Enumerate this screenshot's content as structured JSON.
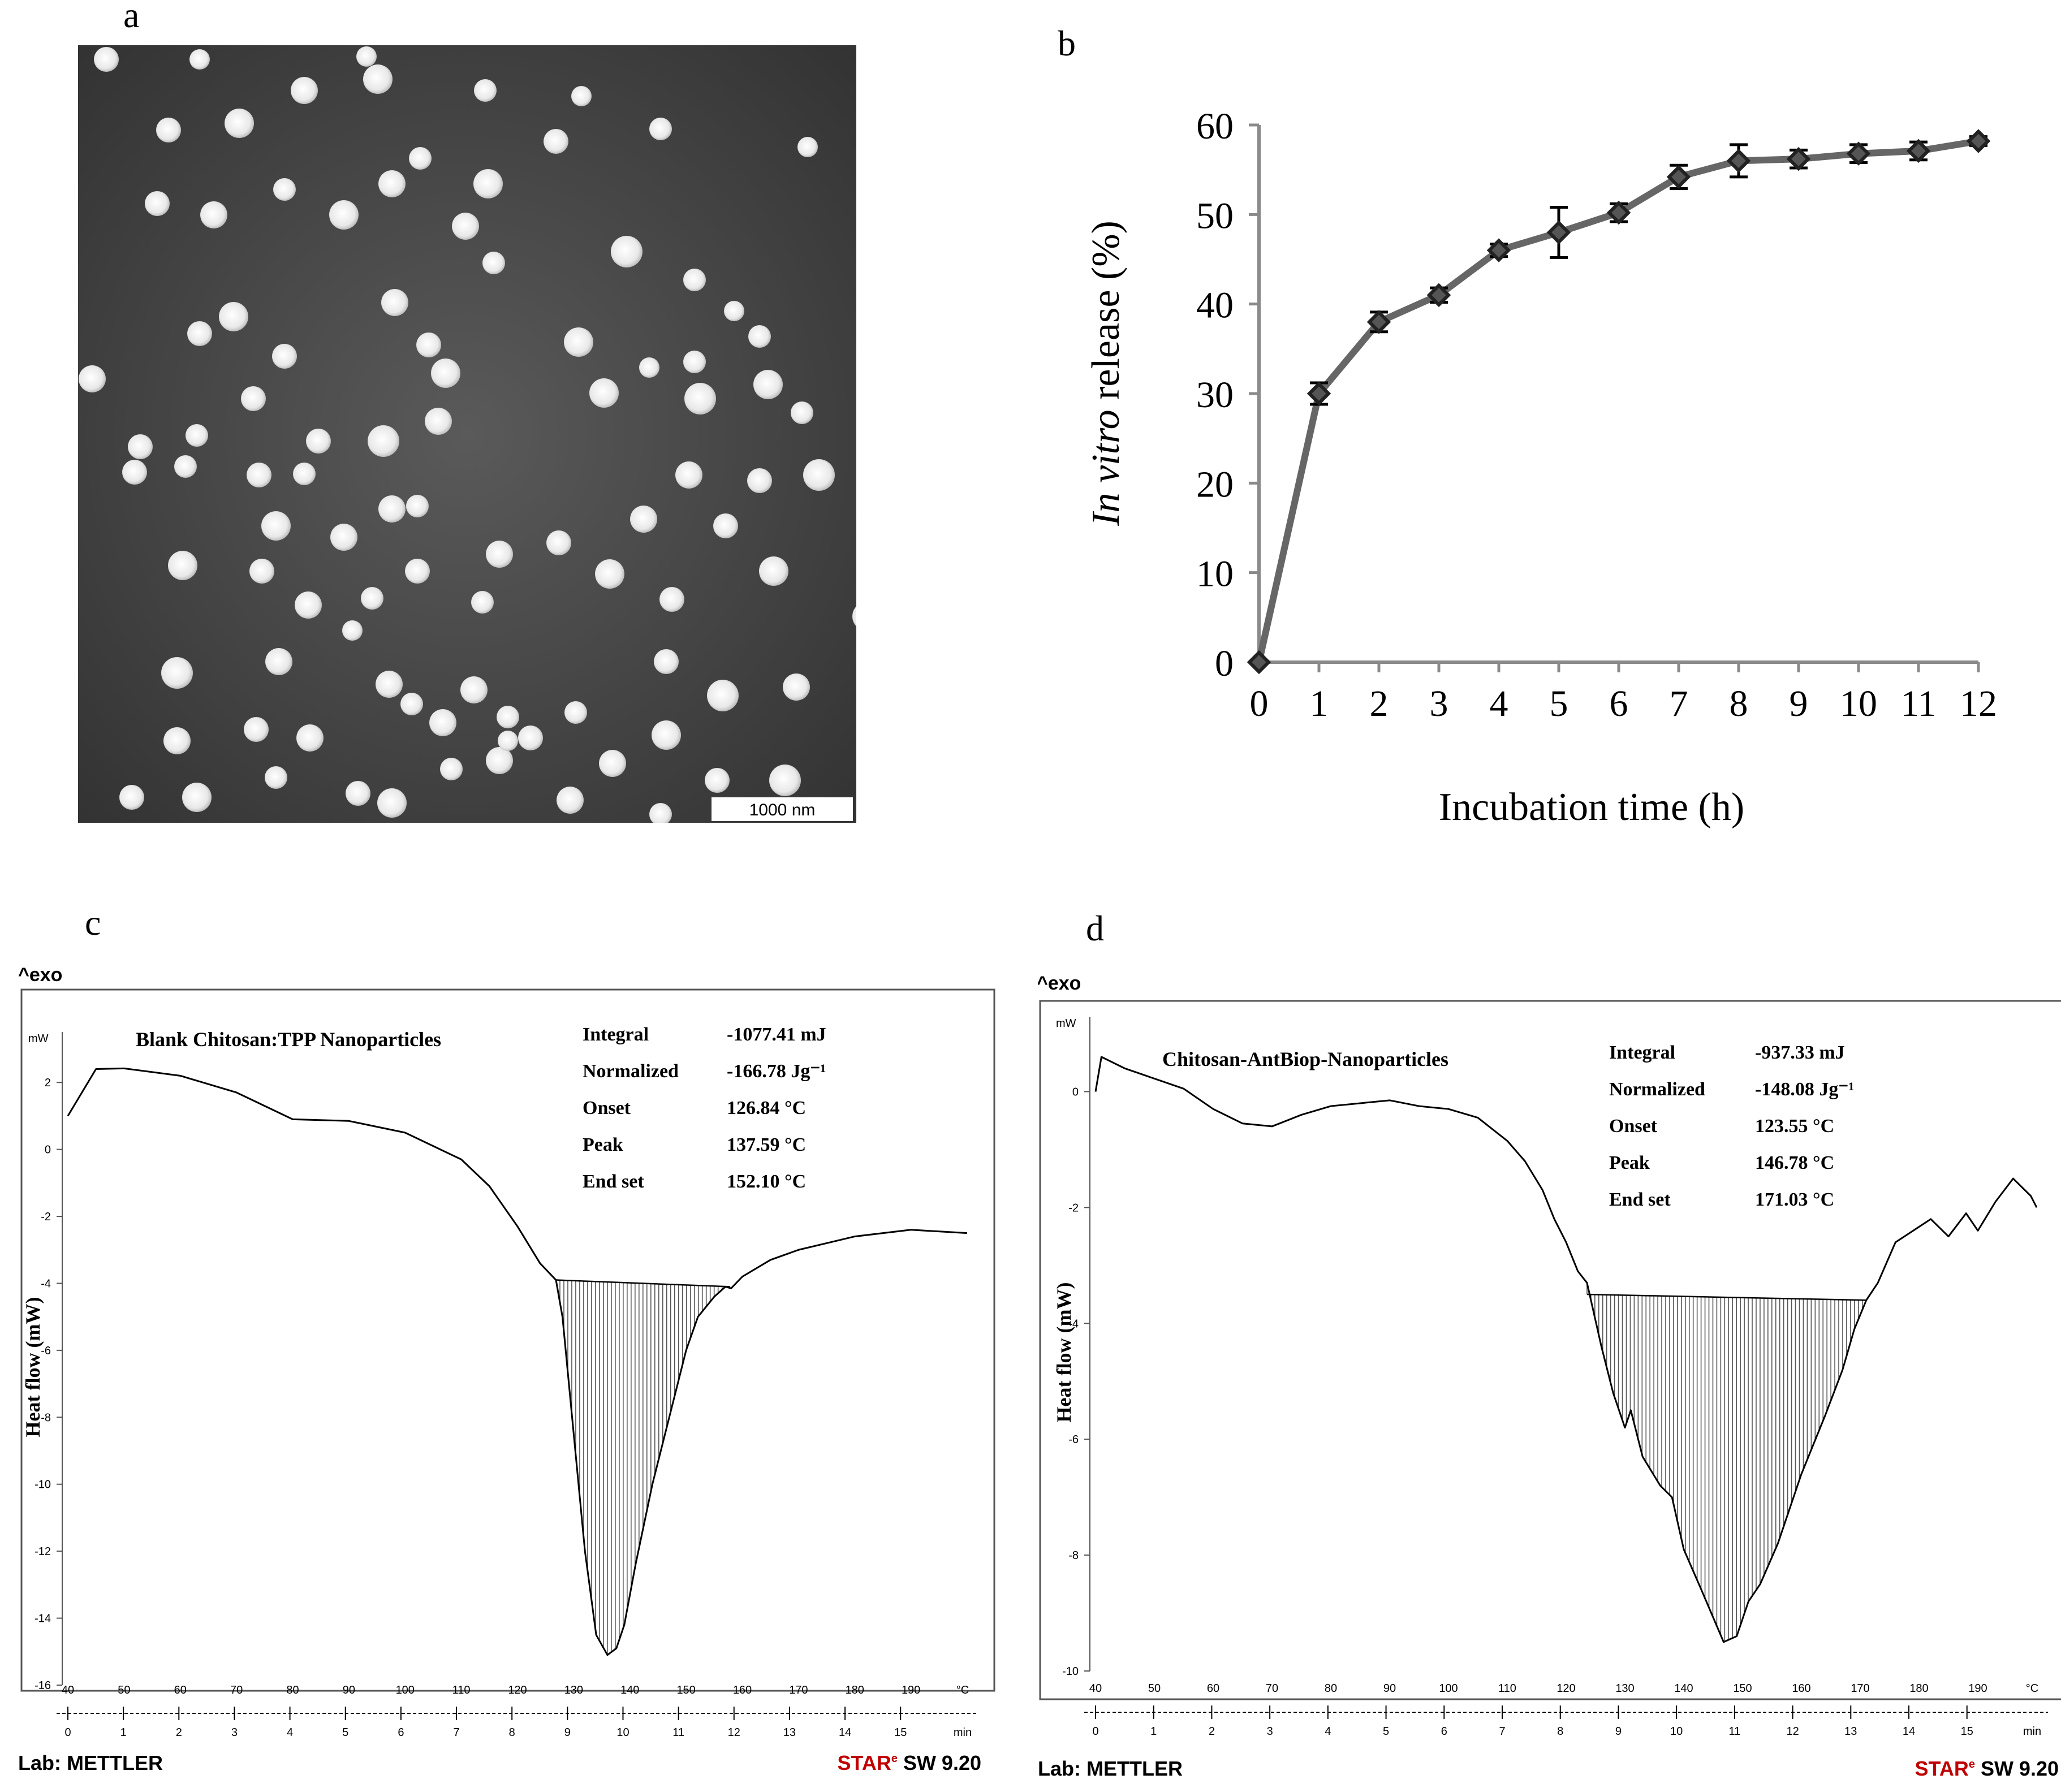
{
  "panels": {
    "a": {
      "letter": "a",
      "scale_bar": "1000 nm"
    },
    "b": {
      "letter": "b"
    },
    "c": {
      "letter": "c"
    },
    "d": {
      "letter": "d"
    }
  },
  "chart_data": [
    {
      "id": "b",
      "type": "line",
      "title": "",
      "xlabel": "Incubation time (h)",
      "ylabel_italic": "In vitro",
      "ylabel_rest": " release (%)",
      "x": [
        0,
        1,
        2,
        3,
        4,
        5,
        6,
        7,
        8,
        9,
        10,
        11,
        12
      ],
      "series": [
        {
          "name": "In vitro release",
          "values": [
            0,
            30,
            38,
            41,
            46,
            48,
            50.2,
            54.2,
            56,
            56.2,
            56.8,
            57.1,
            58.2
          ],
          "errors": [
            0,
            1.2,
            1.1,
            0.8,
            0.7,
            2.8,
            1.0,
            1.3,
            1.8,
            1.0,
            1.0,
            1.0,
            0.5
          ]
        }
      ],
      "xlim": [
        0,
        12
      ],
      "ylim": [
        0,
        60
      ],
      "yticks": [
        0,
        10,
        20,
        30,
        40,
        50,
        60
      ],
      "line_color": "#666666",
      "marker_color": "#222222"
    },
    {
      "id": "c",
      "type": "line",
      "exo_label": "^exo",
      "unit_label": "mW",
      "title": "Blank Chitosan:TPP Nanoparticles",
      "ylabel": "Heat flow (mW)",
      "ylim": [
        -16,
        3
      ],
      "yticks": [
        2,
        0,
        -2,
        -4,
        -6,
        -8,
        -10,
        -12,
        -14,
        -16
      ],
      "temp_ticks": [
        40,
        50,
        60,
        70,
        80,
        90,
        100,
        110,
        120,
        130,
        140,
        150,
        160,
        170,
        180,
        190
      ],
      "temp_unit": "°C",
      "time_ticks": [
        0,
        1,
        2,
        3,
        4,
        5,
        6,
        7,
        8,
        9,
        10,
        11,
        12,
        13,
        14,
        15
      ],
      "time_unit": "min",
      "xlim_temp": [
        40,
        200
      ],
      "curve": {
        "temp": [
          40,
          45,
          50,
          60,
          70,
          80,
          90,
          100,
          110,
          115,
          120,
          124,
          126.84,
          128,
          130,
          132,
          134,
          136,
          137.59,
          139,
          141,
          144,
          147,
          150,
          152.1,
          155,
          157,
          158,
          160,
          165,
          170,
          175,
          180,
          190,
          200
        ],
        "heat": [
          1.0,
          2.4,
          2.42,
          2.2,
          1.7,
          0.9,
          0.85,
          0.5,
          -0.3,
          -1.1,
          -2.3,
          -3.4,
          -3.9,
          -5.0,
          -8.5,
          -12.0,
          -14.5,
          -15.1,
          -14.9,
          -14.2,
          -12.4,
          -10.0,
          -8.0,
          -6.0,
          -5.0,
          -4.4,
          -4.1,
          -4.15,
          -3.8,
          -3.3,
          -3.0,
          -2.8,
          -2.6,
          -2.4,
          -2.5
        ]
      },
      "baseline": {
        "temp": [
          126.84,
          157.8
        ],
        "heat": [
          -3.9,
          -4.1
        ]
      },
      "table": [
        {
          "label": "Integral",
          "value": "-1077.41 mJ"
        },
        {
          "label": "Normalized",
          "value": "-166.78 Jg⁻¹"
        },
        {
          "label": "Onset",
          "value": "126.84 °C"
        },
        {
          "label": "Peak",
          "value": "137.59 °C"
        },
        {
          "label": "End set",
          "value": "152.10 °C"
        }
      ],
      "lab": "Lab: METTLER",
      "star_prefix": "STAR",
      "star_sup": "e",
      "star_suffix": " SW 9.20"
    },
    {
      "id": "d",
      "type": "line",
      "exo_label": "^exo",
      "unit_label": "mW",
      "title": "Chitosan-AntBiop-Nanoparticles",
      "ylabel": "Heat flow (mW)",
      "ylim": [
        -10,
        1
      ],
      "yticks": [
        0,
        -2,
        -4,
        -6,
        -8,
        -10
      ],
      "temp_ticks": [
        40,
        50,
        60,
        70,
        80,
        90,
        100,
        110,
        120,
        130,
        140,
        150,
        160,
        170,
        180,
        190
      ],
      "temp_unit": "°C",
      "time_ticks": [
        0,
        1,
        2,
        3,
        4,
        5,
        6,
        7,
        8,
        9,
        10,
        11,
        12,
        13,
        14,
        15
      ],
      "time_unit": "min",
      "xlim_temp": [
        40,
        200
      ],
      "curve": {
        "temp": [
          40,
          41,
          45,
          55,
          60,
          65,
          70,
          75,
          80,
          85,
          90,
          95,
          100,
          105,
          110,
          113,
          116,
          118,
          120,
          122,
          123.55,
          126,
          128,
          130,
          131,
          133,
          136,
          138,
          140,
          143,
          146.78,
          149,
          151,
          153,
          156,
          160,
          164,
          167,
          169,
          171.03,
          173,
          176,
          179,
          182,
          185,
          188,
          190,
          193,
          196,
          199,
          200
        ],
        "heat": [
          0.0,
          0.6,
          0.4,
          0.05,
          -0.3,
          -0.55,
          -0.6,
          -0.4,
          -0.25,
          -0.2,
          -0.15,
          -0.25,
          -0.3,
          -0.45,
          -0.85,
          -1.2,
          -1.7,
          -2.2,
          -2.6,
          -3.1,
          -3.3,
          -4.4,
          -5.2,
          -5.8,
          -5.5,
          -6.3,
          -6.8,
          -7.0,
          -7.9,
          -8.6,
          -9.5,
          -9.4,
          -8.8,
          -8.5,
          -7.8,
          -6.6,
          -5.6,
          -4.8,
          -4.1,
          -3.6,
          -3.3,
          -2.6,
          -2.4,
          -2.2,
          -2.5,
          -2.1,
          -2.4,
          -1.9,
          -1.5,
          -1.8,
          -2.0
        ]
      },
      "baseline": {
        "temp": [
          123.55,
          171.03
        ],
        "heat": [
          -3.5,
          -3.6
        ]
      },
      "table": [
        {
          "label": "Integral",
          "value": "-937.33 mJ"
        },
        {
          "label": "Normalized",
          "value": "-148.08 Jg⁻¹"
        },
        {
          "label": "Onset",
          "value": "123.55 °C"
        },
        {
          "label": "Peak",
          "value": "146.78 °C"
        },
        {
          "label": "End set",
          "value": "171.03 °C"
        }
      ],
      "lab": "Lab: METTLER",
      "star_prefix": "STAR",
      "star_sup": "e",
      "star_suffix": " SW 9.20"
    }
  ]
}
